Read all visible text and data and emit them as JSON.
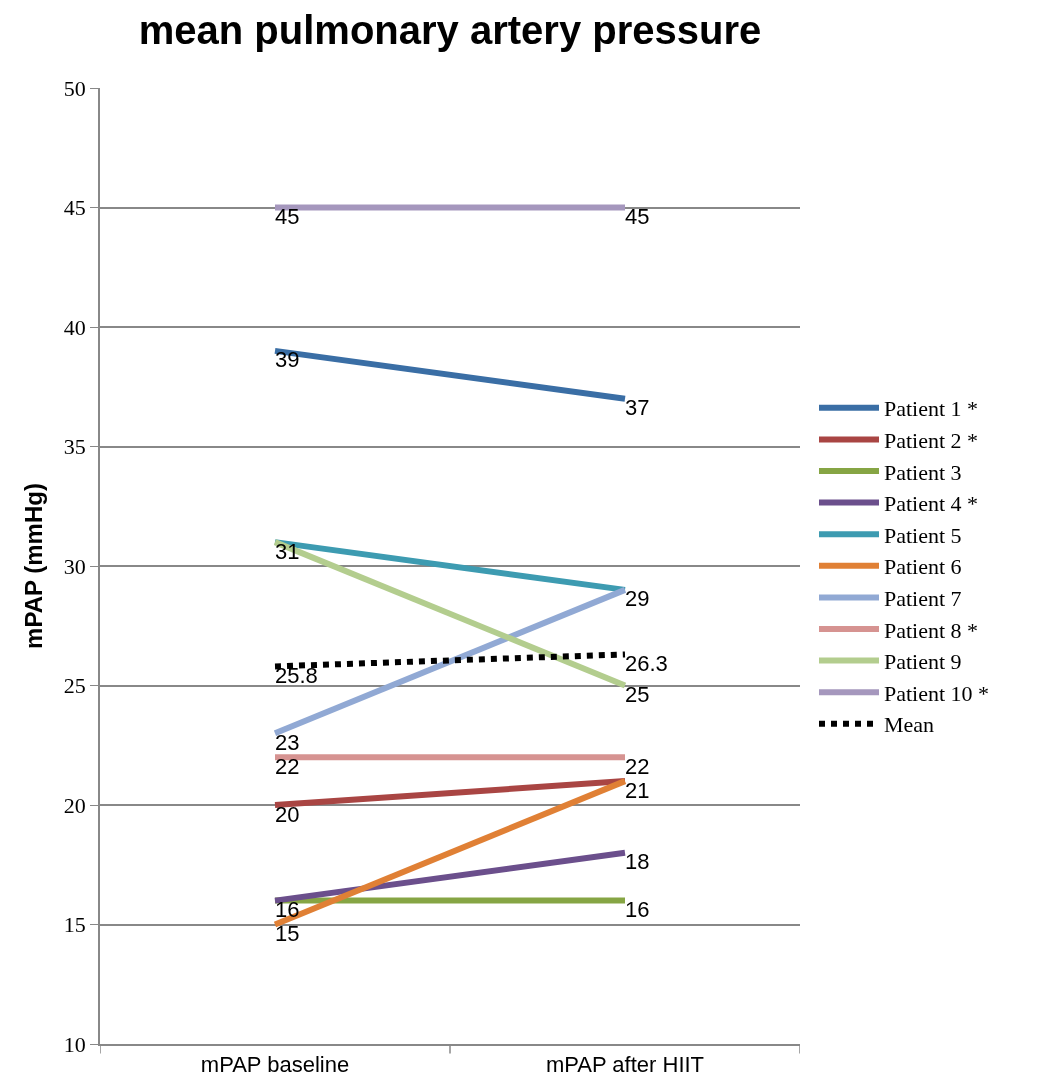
{
  "chart_data": {
    "type": "line",
    "title": "mean pulmonary artery pressure",
    "ylabel": "mPAP (mmHg)",
    "categories": [
      "mPAP baseline",
      "mPAP after HIIT"
    ],
    "series": [
      {
        "name": "Patient 1 *",
        "color": "#3a6ea5",
        "values": [
          39,
          37
        ]
      },
      {
        "name": "Patient 2 *",
        "color": "#a94543",
        "values": [
          20,
          21
        ]
      },
      {
        "name": "Patient 3",
        "color": "#86a544",
        "values": [
          16,
          16
        ]
      },
      {
        "name": "Patient 4 *",
        "color": "#6b4f8c",
        "values": [
          16,
          18
        ],
        "value_labels": [
          null,
          "18"
        ]
      },
      {
        "name": "Patient 5",
        "color": "#3d9bb1",
        "values": [
          31,
          29
        ]
      },
      {
        "name": "Patient 6",
        "color": "#e08035",
        "values": [
          15,
          21
        ],
        "value_labels": [
          "15",
          null
        ]
      },
      {
        "name": "Patient 7",
        "color": "#91a9d4",
        "values": [
          23,
          29
        ],
        "value_labels": [
          "23",
          null
        ]
      },
      {
        "name": "Patient 8 *",
        "color": "#d69391",
        "values": [
          22,
          22
        ]
      },
      {
        "name": "Patient 9",
        "color": "#b3cd8e",
        "values": [
          31,
          25
        ],
        "value_labels": [
          null,
          "25"
        ]
      },
      {
        "name": "Patient 10 *",
        "color": "#a597bd",
        "values": [
          45,
          45
        ]
      },
      {
        "name": "Mean",
        "color": "#000000",
        "values": [
          25.8,
          26.3
        ],
        "line_style": "dotted"
      }
    ],
    "ylim": [
      10,
      50
    ],
    "yticks": [
      10,
      15,
      20,
      25,
      30,
      35,
      40,
      45,
      50
    ],
    "grid": "y",
    "legend": "right",
    "marker": "none",
    "line_style": "solid",
    "data_labels": true
  }
}
